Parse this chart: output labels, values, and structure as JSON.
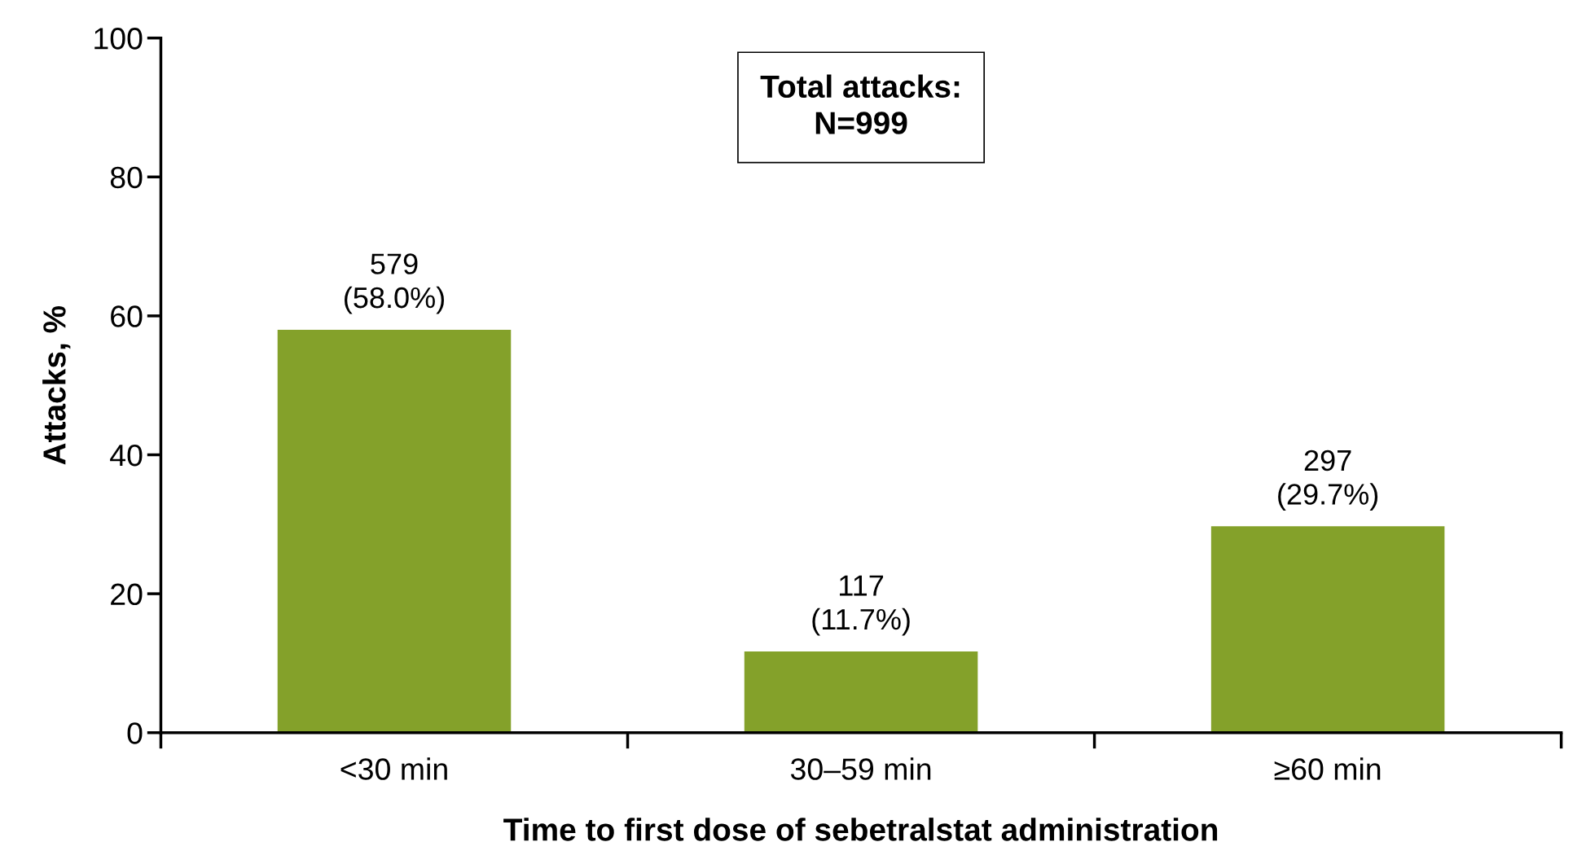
{
  "chart_data": {
    "type": "bar",
    "categories": [
      "<30 min",
      "30–59 min",
      "≥60 min"
    ],
    "values": [
      58.0,
      11.7,
      29.7
    ],
    "value_labels": [
      "579\n(58.0%)",
      "117\n(11.7%)",
      "297\n(29.7%)"
    ],
    "color": "#84a12a",
    "xlabel": "Time to first dose of sebetralstat administration",
    "ylabel": "Attacks, %",
    "ylim": [
      0,
      100
    ],
    "yticks": [
      0,
      20,
      40,
      60,
      80,
      100
    ],
    "annotations": [
      "Total attacks:\nN=999"
    ],
    "grid": false,
    "legend": false
  }
}
